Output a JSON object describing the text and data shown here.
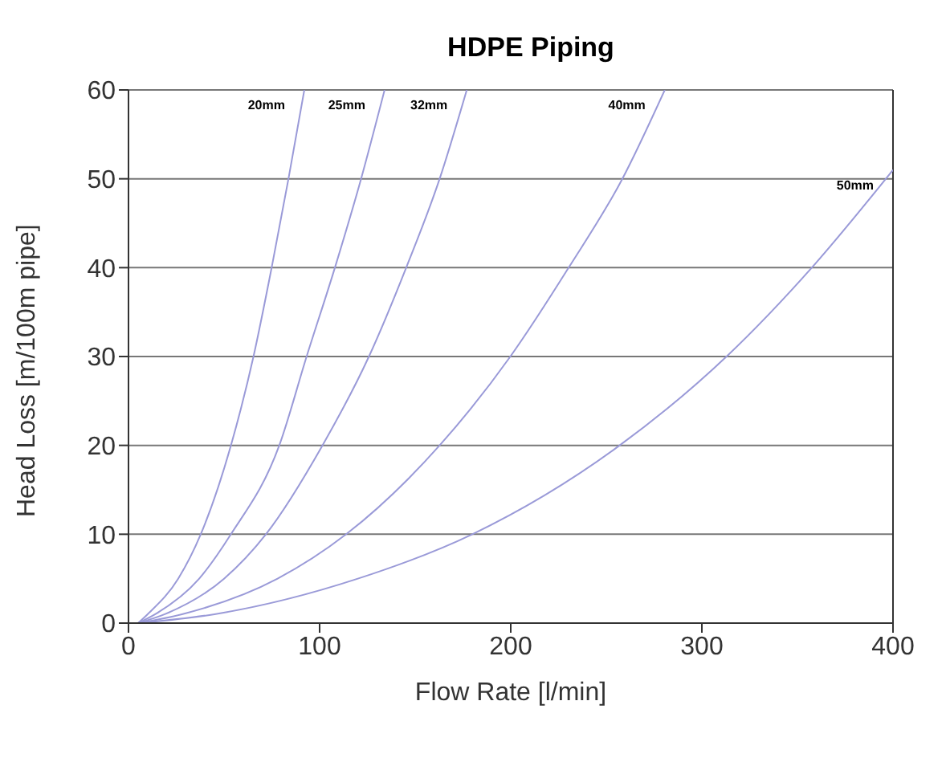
{
  "chart_data": {
    "type": "line",
    "title": "HDPE Piping",
    "xlabel": "Flow Rate [l/min]",
    "ylabel": "Head Loss [m/100m pipe]",
    "xlim": [
      0,
      400
    ],
    "xticks": [
      0,
      100,
      200,
      300,
      400
    ],
    "ylim": [
      0,
      60
    ],
    "yticks": [
      0,
      10,
      20,
      30,
      40,
      50,
      60
    ],
    "grid": "y",
    "marker": "none",
    "line_style": "solid",
    "series": [
      {
        "name": "20mm",
        "color": "#9a9ad8",
        "x": [
          5,
          10,
          26,
          37.8,
          53.6,
          65.4,
          74.9,
          83.7,
          92
        ],
        "values": [
          0,
          1,
          5,
          10,
          20,
          30,
          40,
          50,
          60
        ]
      },
      {
        "name": "25mm",
        "color": "#9a9ad8",
        "x": [
          5,
          14,
          37,
          53.6,
          78.9,
          93.2,
          108,
          121.7,
          134
        ],
        "values": [
          0,
          1,
          5,
          10,
          20,
          30,
          40,
          50,
          60
        ]
      },
      {
        "name": "32mm",
        "color": "#9a9ad8",
        "x": [
          5,
          19,
          50,
          71.9,
          101.5,
          125.8,
          145.3,
          162.8,
          177
        ],
        "values": [
          0,
          1,
          5,
          10,
          20,
          30,
          40,
          50,
          60
        ]
      },
      {
        "name": "40mm",
        "color": "#9a9ad8",
        "x": [
          5,
          28,
          78,
          113.9,
          162.8,
          199.8,
          230.3,
          258.4,
          280.6
        ],
        "values": [
          0,
          1,
          5,
          10,
          20,
          30,
          40,
          50,
          60
        ]
      },
      {
        "name": "50mm",
        "color": "#9a9ad8",
        "x": [
          5,
          45,
          120,
          179.9,
          257,
          312.9,
          357.5,
          400
        ],
        "values": [
          0,
          1,
          5,
          10,
          20,
          30,
          40,
          51
        ]
      }
    ]
  }
}
